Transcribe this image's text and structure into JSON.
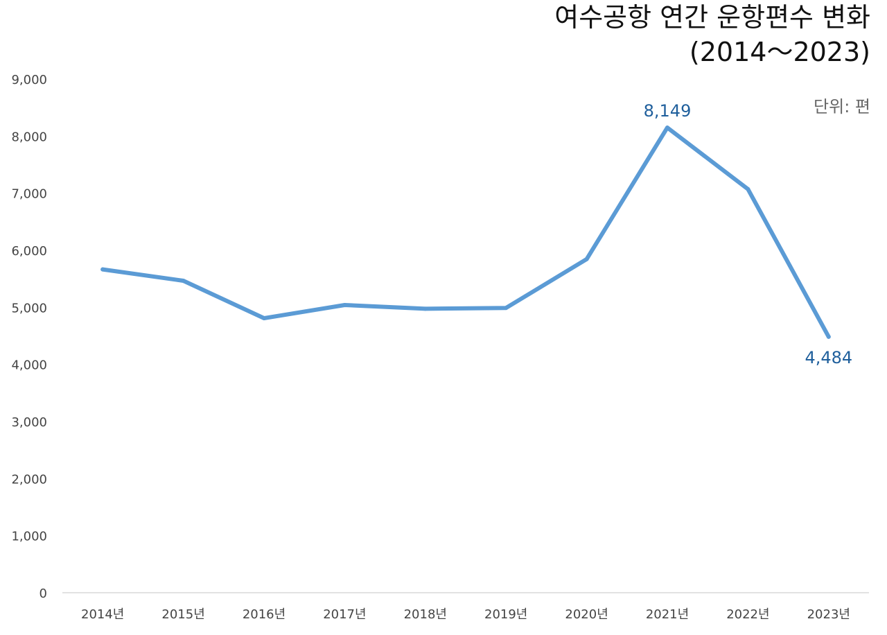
{
  "chart_data": {
    "type": "line",
    "title": "여수공항 연간 운항편수 변화",
    "subtitle": "(2014～2023)",
    "unit_label": "단위: 편",
    "categories": [
      "2014년",
      "2015년",
      "2016년",
      "2017년",
      "2018년",
      "2019년",
      "2020년",
      "2021년",
      "2022년",
      "2023년"
    ],
    "series": [
      {
        "values": [
          5665,
          5465,
          4810,
          5040,
          4975,
          4990,
          5845,
          8149,
          7070,
          4484
        ]
      }
    ],
    "data_labels": [
      {
        "index": 7,
        "text": "8,149"
      },
      {
        "index": 9,
        "text": "4,484"
      }
    ],
    "yticks": [
      "0",
      "1,000",
      "2,000",
      "3,000",
      "4,000",
      "5,000",
      "6,000",
      "7,000",
      "8,000",
      "9,000"
    ],
    "ylim": [
      0,
      9000
    ],
    "grid": false,
    "colors": {
      "line": "#5b9bd5",
      "label": "#1f5f9c",
      "axis": "#d9d9d9",
      "tick": "#444444"
    }
  }
}
